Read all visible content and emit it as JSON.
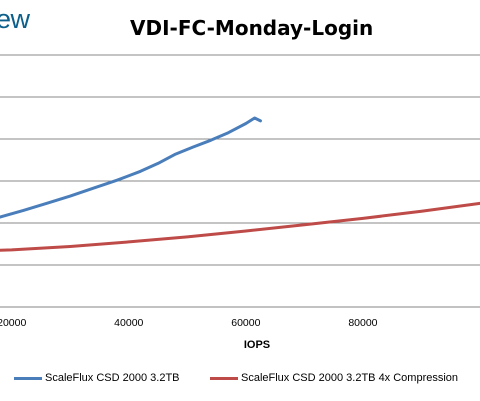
{
  "header": {
    "logo_text": "ew"
  },
  "chart_data": {
    "type": "line",
    "title": "VDI-FC-Monday-Login",
    "xlabel": "IOPS",
    "ylabel": "",
    "x_ticks": [
      "20000",
      "40000",
      "60000",
      "80000"
    ],
    "x_tick_values": [
      20000,
      40000,
      60000,
      80000
    ],
    "xlim": [
      18000,
      100000
    ],
    "ylim": [
      0,
      6
    ],
    "grid": "horizontal",
    "legend_position": "bottom",
    "series": [
      {
        "name": "ScaleFlux CSD 2000 3.2TB",
        "color": "#4a7ebb",
        "x": [
          18000,
          22000,
          26000,
          30000,
          34000,
          38000,
          42000,
          45000,
          48000,
          51000,
          54000,
          57000,
          60000,
          61500,
          62500
        ],
        "y": [
          2.14,
          2.3,
          2.47,
          2.64,
          2.83,
          3.02,
          3.23,
          3.42,
          3.64,
          3.81,
          3.97,
          4.15,
          4.37,
          4.5,
          4.43
        ]
      },
      {
        "name": "ScaleFlux CSD 2000 3.2TB 4x Compression",
        "color": "#be4b48",
        "x": [
          18000,
          20000,
          30000,
          40000,
          50000,
          60000,
          70000,
          80000,
          90000,
          100000
        ],
        "y": [
          1.35,
          1.36,
          1.44,
          1.55,
          1.67,
          1.81,
          1.96,
          2.11,
          2.28,
          2.47
        ]
      }
    ]
  }
}
